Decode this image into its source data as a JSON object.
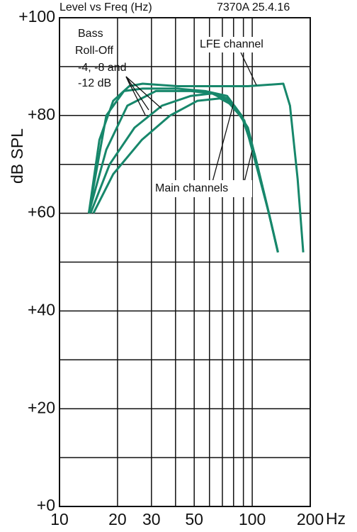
{
  "chart_data": {
    "type": "line",
    "title": "Level vs Freq (Hz)",
    "subtitle": "7370A 25.4.16",
    "y_label": "dB SPL",
    "x_label": "Hz",
    "log_x": true,
    "grid": true,
    "xlim": [
      10,
      200
    ],
    "ylim": [
      0,
      100
    ],
    "xticks": [
      10,
      20,
      30,
      50,
      100,
      200
    ],
    "minor_xticks": [
      40,
      60,
      70,
      80,
      90
    ],
    "yticks": [
      {
        "value": 0,
        "label": "+0"
      },
      {
        "value": 20,
        "label": "+20"
      },
      {
        "value": 40,
        "label": "+40"
      },
      {
        "value": 60,
        "label": "+60"
      },
      {
        "value": 80,
        "label": "+80"
      },
      {
        "value": 100,
        "label": "+100"
      }
    ],
    "minor_yticks": [
      10,
      30,
      50,
      70,
      90
    ],
    "annotations": [
      "Bass",
      "Roll-Off",
      "-4, -8 and",
      "-12 dB",
      "LFE channel",
      "Main channels"
    ],
    "series": [
      {
        "color": "#17876b",
        "x": [
          14.2,
          16.1,
          19,
          23,
          27,
          41,
          62,
          95,
          145,
          157,
          172,
          184
        ],
        "values": [
          60,
          75,
          83,
          86,
          86.5,
          86,
          86,
          86,
          86.5,
          82,
          67,
          52
        ]
      },
      {
        "color": "#17876b",
        "x": [
          14.2,
          17.5,
          21.6,
          27,
          41,
          57,
          74,
          88,
          103,
          122,
          136
        ],
        "values": [
          60,
          80,
          85,
          85.5,
          85.5,
          85,
          84,
          80,
          72,
          60,
          52
        ]
      },
      {
        "color": "#17876b",
        "x": [
          14.2,
          17.5,
          22.5,
          31.6,
          48,
          62,
          74,
          88,
          103,
          122,
          136
        ],
        "values": [
          60,
          73,
          82,
          85,
          85,
          84.5,
          83.5,
          80,
          72,
          60,
          52
        ]
      },
      {
        "color": "#17876b",
        "x": [
          14.5,
          18.2,
          24.5,
          34,
          48,
          62,
          74,
          91,
          103,
          122,
          136
        ],
        "values": [
          60,
          70,
          77.5,
          82,
          84,
          84.5,
          83,
          79,
          71,
          60,
          52
        ]
      },
      {
        "color": "#17876b",
        "x": [
          15,
          19,
          26.7,
          37.5,
          52,
          68,
          80,
          95,
          106,
          122,
          136
        ],
        "values": [
          60,
          68,
          75,
          80,
          83,
          83.5,
          82,
          77.5,
          70,
          60,
          52
        ]
      }
    ]
  }
}
